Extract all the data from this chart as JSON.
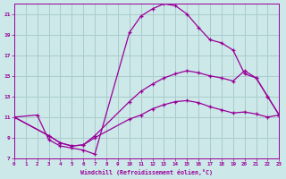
{
  "bg_color": "#cce8e8",
  "grid_color": "#aacccc",
  "line_color": "#990099",
  "xlim": [
    0,
    23
  ],
  "ylim": [
    7,
    22
  ],
  "xtick_labels": [
    "0",
    "1",
    "2",
    "3",
    "4",
    "5",
    "6",
    "7",
    "8",
    "9",
    "10",
    "11",
    "12",
    "13",
    "14",
    "15",
    "16",
    "17",
    "18",
    "19",
    "20",
    "21",
    "22",
    "23"
  ],
  "ytick_labels": [
    "7",
    "9",
    "11",
    "13",
    "15",
    "17",
    "19",
    "21"
  ],
  "ytick_vals": [
    7,
    9,
    11,
    13,
    15,
    17,
    19,
    21
  ],
  "xlabel": "Windchill (Refroidissement éolien,°C)",
  "line1_x": [
    0,
    2,
    3,
    4,
    5,
    6,
    7,
    10,
    11,
    12,
    13,
    14,
    15,
    16,
    17,
    18,
    19,
    20,
    21,
    22,
    23
  ],
  "line1_y": [
    11.0,
    11.2,
    8.8,
    8.2,
    8.0,
    7.8,
    7.4,
    19.2,
    20.8,
    21.5,
    22.0,
    21.8,
    21.0,
    19.7,
    18.5,
    18.2,
    17.5,
    15.2,
    14.8,
    13.0,
    11.2
  ],
  "line2_x": [
    0,
    3,
    4,
    5,
    6,
    7,
    10,
    11,
    12,
    13,
    14,
    15,
    16,
    17,
    18,
    19,
    20,
    21,
    22,
    23
  ],
  "line2_y": [
    11.0,
    9.2,
    8.5,
    8.2,
    8.3,
    9.2,
    12.5,
    13.5,
    14.2,
    14.8,
    15.2,
    15.5,
    15.3,
    15.0,
    14.8,
    14.5,
    15.5,
    14.8,
    13.0,
    11.2
  ],
  "line3_x": [
    0,
    3,
    4,
    5,
    6,
    7,
    10,
    11,
    12,
    13,
    14,
    15,
    16,
    17,
    18,
    19,
    20,
    21,
    22,
    23
  ],
  "line3_y": [
    11.0,
    9.2,
    8.5,
    8.2,
    8.3,
    9.0,
    10.8,
    11.2,
    11.8,
    12.2,
    12.5,
    12.6,
    12.4,
    12.0,
    11.7,
    11.4,
    11.5,
    11.3,
    11.0,
    11.2
  ]
}
